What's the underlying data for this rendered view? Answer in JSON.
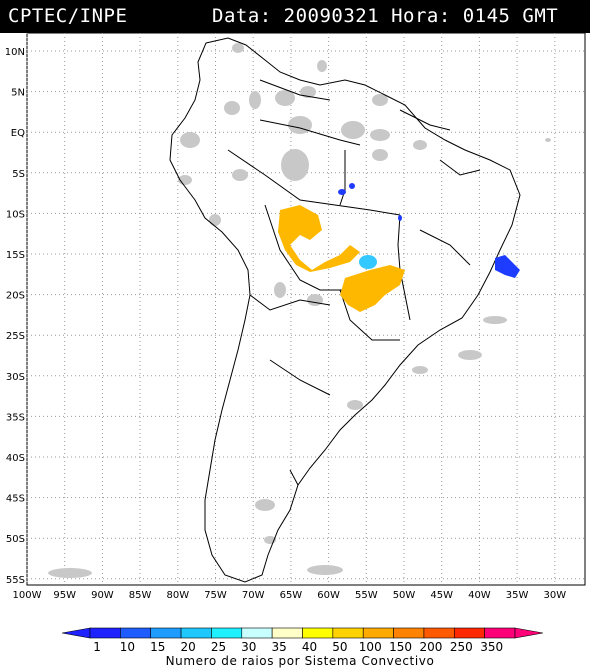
{
  "header": {
    "source": "CPTEC/INPE",
    "datetime": "Data: 20090321 Hora: 0145 GMT"
  },
  "map": {
    "lat_labels": [
      "10N",
      "5N",
      "EQ",
      "5S",
      "10S",
      "15S",
      "20S",
      "25S",
      "30S",
      "35S",
      "40S",
      "45S",
      "50S",
      "55S"
    ],
    "lon_labels": [
      "100W",
      "95W",
      "90W",
      "85W",
      "80W",
      "75W",
      "70W",
      "65W",
      "60W",
      "55W",
      "50W",
      "45W",
      "40W",
      "35W",
      "30W"
    ],
    "grid": "dotted",
    "colors": {
      "cloud_gray": "#c4c4c4",
      "blue": "#1e3cff",
      "light_blue": "#33c8ff",
      "orange": "#ffb800"
    }
  },
  "colorbar": {
    "values": [
      "1",
      "10",
      "15",
      "20",
      "25",
      "30",
      "35",
      "40",
      "50",
      "100",
      "150",
      "200",
      "250",
      "350"
    ],
    "colors": [
      "#1e22ff",
      "#1e5cff",
      "#1e9cff",
      "#1ec8ff",
      "#1ef0ff",
      "#c8ffff",
      "#ffffc8",
      "#ffff00",
      "#ffd200",
      "#ffaa00",
      "#ff8200",
      "#ff5a00",
      "#ff2800",
      "#ff0078"
    ],
    "caption": "Numero de raios por Sistema Convectivo"
  }
}
